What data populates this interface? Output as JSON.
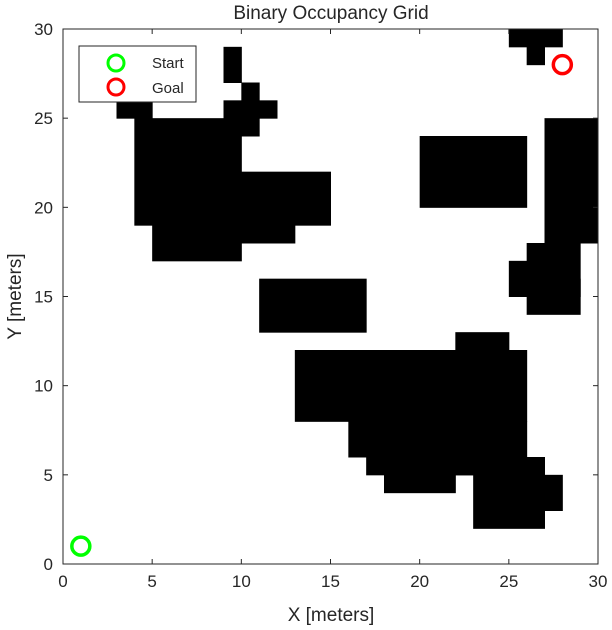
{
  "chart_data": {
    "type": "heatmap",
    "title": "Binary Occupancy Grid",
    "xlabel": "X [meters]",
    "ylabel": "Y [meters]",
    "xlim": [
      0,
      30
    ],
    "ylim": [
      0,
      30
    ],
    "xticks": [
      0,
      5,
      10,
      15,
      20,
      25,
      30
    ],
    "yticks": [
      0,
      5,
      10,
      15,
      20,
      25,
      30
    ],
    "cell_size": 1,
    "occupied_color": "#000000",
    "free_color": "#ffffff",
    "occupied_cells": [
      [
        4,
        19,
        6,
        6
      ],
      [
        5,
        17,
        5,
        2
      ],
      [
        10,
        19,
        5,
        3
      ],
      [
        10,
        18,
        3,
        1
      ],
      [
        3,
        25,
        2,
        1
      ],
      [
        9,
        27,
        1,
        2
      ],
      [
        10,
        25,
        1,
        2
      ],
      [
        9,
        25,
        3,
        1
      ],
      [
        10,
        24,
        1,
        1
      ],
      [
        25,
        29,
        3,
        1
      ],
      [
        26,
        28,
        1,
        1
      ],
      [
        20,
        20,
        6,
        4
      ],
      [
        27,
        18,
        3,
        7
      ],
      [
        26,
        14,
        3,
        4
      ],
      [
        25,
        15,
        1,
        2
      ],
      [
        28,
        15,
        1,
        1
      ],
      [
        11,
        13,
        6,
        3
      ],
      [
        22,
        12,
        3,
        1
      ],
      [
        13,
        8,
        13,
        4
      ],
      [
        24,
        11,
        1,
        1
      ],
      [
        16,
        6,
        10,
        2
      ],
      [
        17,
        5,
        8,
        1
      ],
      [
        18,
        4,
        4,
        1
      ],
      [
        23,
        2,
        4,
        4
      ],
      [
        21,
        5,
        4,
        1
      ],
      [
        27,
        3,
        1,
        2
      ]
    ],
    "markers": [
      {
        "name": "Start",
        "x": 1,
        "y": 1,
        "color": "#00ff00"
      },
      {
        "name": "Goal",
        "x": 28,
        "y": 28,
        "color": "#ff0000"
      }
    ],
    "legend": {
      "location": "top-left",
      "entries": [
        "Start",
        "Goal"
      ]
    }
  }
}
